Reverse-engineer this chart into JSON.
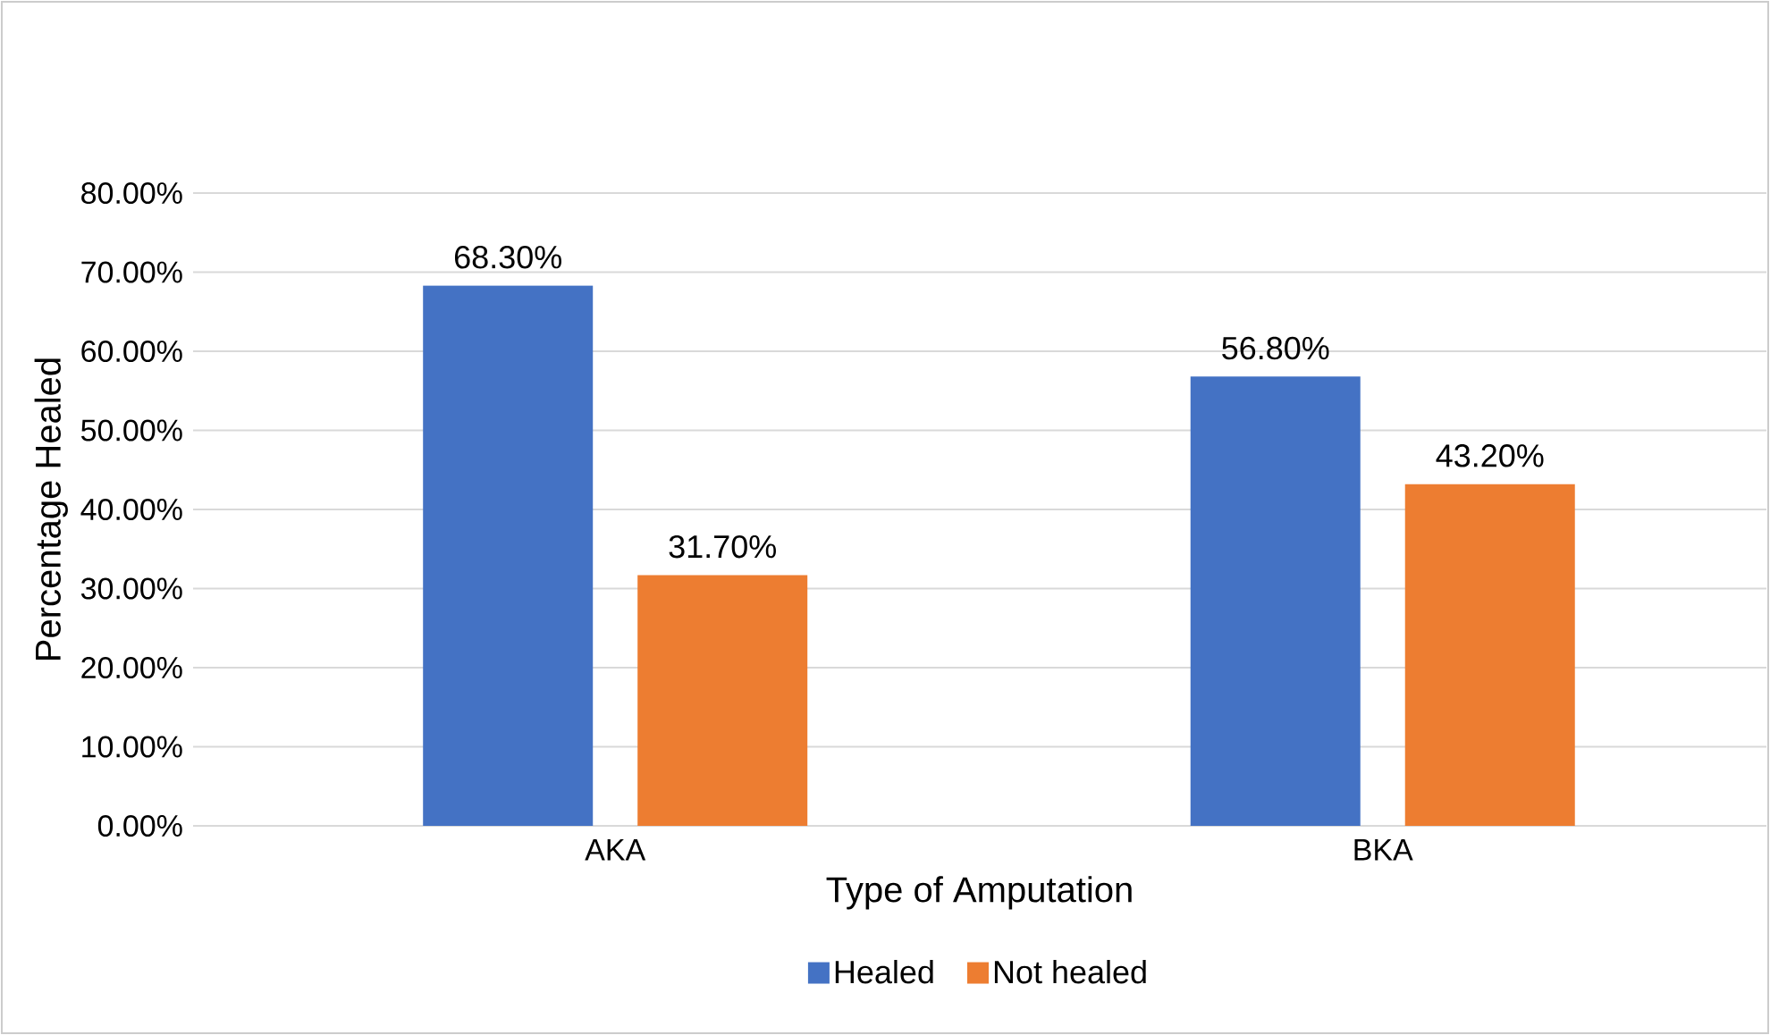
{
  "chart_data": {
    "type": "bar",
    "xlabel": "Type of Amputation",
    "ylabel": "Percentage Healed",
    "categories": [
      "AKA",
      "BKA"
    ],
    "series": [
      {
        "name": "Healed",
        "color": "#4472c4",
        "values": [
          68.3,
          56.8
        ],
        "value_labels": [
          "68.30%",
          "56.80%"
        ]
      },
      {
        "name": "Not healed",
        "color": "#ed7d31",
        "values": [
          31.7,
          43.2
        ],
        "value_labels": [
          "31.70%",
          "43.20%"
        ]
      }
    ],
    "ylim": [
      0,
      80
    ],
    "yticks": [
      {
        "value": 0,
        "label": "0.00%"
      },
      {
        "value": 10,
        "label": "10.00%"
      },
      {
        "value": 20,
        "label": "20.00%"
      },
      {
        "value": 30,
        "label": "30.00%"
      },
      {
        "value": 40,
        "label": "40.00%"
      },
      {
        "value": 50,
        "label": "50.00%"
      },
      {
        "value": 60,
        "label": "60.00%"
      },
      {
        "value": 70,
        "label": "70.00%"
      },
      {
        "value": 80,
        "label": "80.00%"
      }
    ],
    "grid": "y",
    "legend": "bottom"
  }
}
